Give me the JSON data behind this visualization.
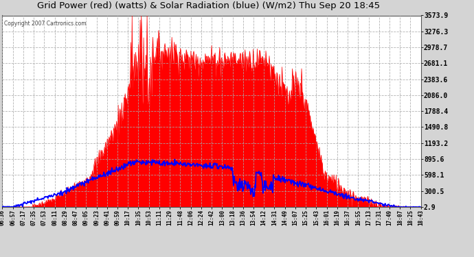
{
  "title": "Grid Power (red) (watts) & Solar Radiation (blue) (W/m2) Thu Sep 20 18:45",
  "copyright": "Copyright 2007 Cartronics.com",
  "outer_bg": "#d4d4d4",
  "plot_bg": "#ffffff",
  "grid_color": "#aaaaaa",
  "red_color": "#ff0000",
  "blue_color": "#0000ff",
  "yticks": [
    2.9,
    300.5,
    598.1,
    895.6,
    1193.2,
    1490.8,
    1788.4,
    2086.0,
    2383.6,
    2681.1,
    2978.7,
    3276.3,
    3573.9
  ],
  "xtick_labels": [
    "06:36",
    "06:57",
    "07:17",
    "07:35",
    "07:53",
    "08:11",
    "08:29",
    "08:47",
    "09:05",
    "09:23",
    "09:41",
    "09:59",
    "10:17",
    "10:35",
    "10:53",
    "11:11",
    "11:29",
    "11:48",
    "12:06",
    "12:24",
    "12:42",
    "13:00",
    "13:18",
    "13:36",
    "13:54",
    "14:12",
    "14:31",
    "14:49",
    "15:07",
    "15:25",
    "15:43",
    "16:01",
    "16:19",
    "16:37",
    "16:55",
    "17:13",
    "17:31",
    "17:49",
    "18:07",
    "18:25",
    "18:43"
  ],
  "ymin": 2.9,
  "ymax": 3573.9
}
